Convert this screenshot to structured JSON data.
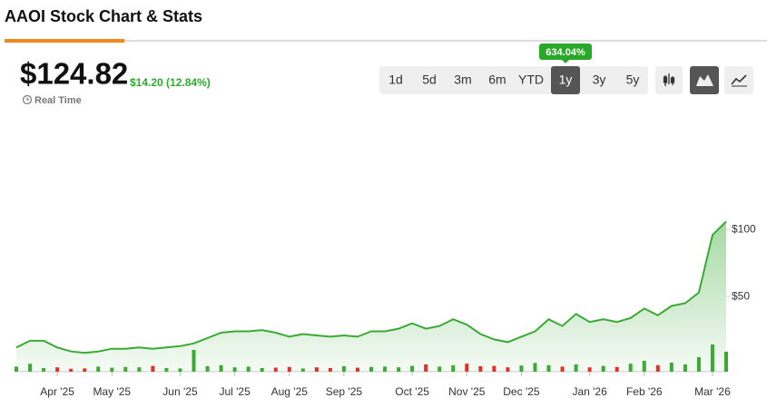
{
  "header": {
    "title": "AAOI Stock Chart & Stats"
  },
  "quote": {
    "price": "$124.82",
    "change": "$14.20 (12.84%)",
    "realtime": "Real Time"
  },
  "range_selector": {
    "options": [
      "1d",
      "5d",
      "3m",
      "6m",
      "YTD",
      "1y",
      "3y",
      "5y"
    ],
    "selected": 5,
    "badge": "634.04%"
  },
  "chart_data": {
    "type": "line",
    "categories": [
      null,
      null,
      null,
      "Apr '25",
      null,
      null,
      null,
      "May '25",
      null,
      null,
      null,
      null,
      "Jun '25",
      null,
      null,
      null,
      "Jul '25",
      null,
      null,
      null,
      "Aug '25",
      null,
      null,
      null,
      "Sep '25",
      null,
      null,
      null,
      null,
      "Oct '25",
      null,
      null,
      null,
      "Nov '25",
      null,
      null,
      null,
      "Dec '25",
      null,
      null,
      null,
      null,
      "Jan '26",
      null,
      null,
      null,
      "Feb '26",
      null,
      null,
      null,
      null,
      "Mar '26",
      null
    ],
    "series": [
      {
        "color": "#3aaa35",
        "values": [
          12,
          17,
          17,
          12,
          9,
          8,
          9,
          11,
          11,
          12,
          11,
          12,
          13,
          15,
          19,
          23,
          24,
          24,
          25,
          23,
          20,
          22,
          21,
          20,
          21,
          20,
          24,
          24,
          26,
          30,
          26,
          28,
          33,
          29,
          22,
          18,
          16,
          20,
          24,
          33,
          28,
          37,
          31,
          33,
          31,
          34,
          41,
          36,
          43,
          45,
          53,
          96,
          106
        ]
      },
      {
        "type": "bar",
        "axis": "y2",
        "color_up": "#3aaa35",
        "color_down": "#e0302a",
        "values": [
          14,
          22,
          10,
          12,
          8,
          9,
          14,
          11,
          13,
          12,
          16,
          10,
          9,
          60,
          15,
          18,
          12,
          14,
          10,
          11,
          13,
          9,
          12,
          10,
          15,
          11,
          13,
          14,
          12,
          16,
          20,
          14,
          18,
          22,
          15,
          16,
          12,
          17,
          24,
          18,
          14,
          20,
          12,
          16,
          13,
          22,
          30,
          18,
          25,
          20,
          40,
          75,
          55
        ]
      }
    ],
    "ylim": [
      0,
      180
    ],
    "yticks": [
      {
        "value": 50,
        "label": "$50"
      },
      {
        "value": 100,
        "label": "$100"
      }
    ],
    "y2lim": [
      0,
      100
    ]
  }
}
